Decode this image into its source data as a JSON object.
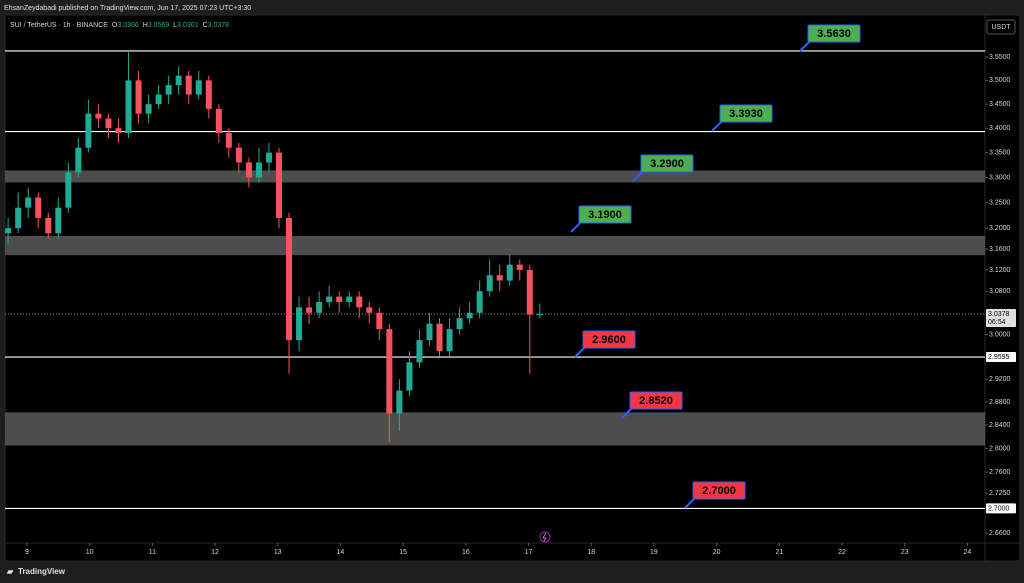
{
  "header": "EhsanZeydabadi published on TradingView.com, Jun 17, 2025 07:23 UTC+3:30",
  "footer": "TradingView",
  "chart_data": {
    "type": "candlestick",
    "symbol": "SUI / TetherUS · 1h · BINANCE",
    "ohlc": [
      {
        "label": "O",
        "value": 3.0366
      },
      {
        "label": "H",
        "value": 3.0569
      },
      {
        "label": "L",
        "value": 3.0301
      },
      {
        "label": "C",
        "value": 3.0378
      }
    ],
    "currency": "USDT",
    "log_scale": true,
    "up_color": "#22ab94",
    "down_color": "#f7525f",
    "x": [
      8.7,
      8.86,
      9.02,
      9.18,
      9.34,
      9.5,
      9.66,
      9.82,
      9.98,
      10.14,
      10.3,
      10.46,
      10.62,
      10.78,
      10.94,
      11.1,
      11.26,
      11.42,
      11.58,
      11.74,
      11.9,
      12.06,
      12.22,
      12.38,
      12.54,
      12.7,
      12.86,
      13.02,
      13.18,
      13.34,
      13.5,
      13.66,
      13.82,
      13.98,
      14.14,
      14.3,
      14.46,
      14.62,
      14.78,
      14.94,
      15.1,
      15.26,
      15.42,
      15.58,
      15.74,
      15.9,
      16.06,
      16.22,
      16.38,
      16.54,
      16.7,
      16.86,
      17.02,
      17.18
    ],
    "open": [
      3.19,
      3.2,
      3.24,
      3.26,
      3.22,
      3.19,
      3.24,
      3.31,
      3.36,
      3.43,
      3.42,
      3.4,
      3.39,
      3.5,
      3.43,
      3.45,
      3.47,
      3.49,
      3.51,
      3.47,
      3.5,
      3.44,
      3.39,
      3.36,
      3.33,
      3.3,
      3.33,
      3.35,
      3.22,
      2.99,
      3.05,
      3.04,
      3.06,
      3.07,
      3.06,
      3.07,
      3.05,
      3.04,
      3.01,
      2.86,
      2.9,
      2.95,
      2.99,
      3.02,
      2.97,
      3.01,
      3.03,
      3.04,
      3.08,
      3.11,
      3.1,
      3.13,
      3.12,
      3.0366
    ],
    "high": [
      3.22,
      3.27,
      3.28,
      3.27,
      3.23,
      3.26,
      3.33,
      3.38,
      3.46,
      3.45,
      3.43,
      3.42,
      3.56,
      3.52,
      3.47,
      3.49,
      3.51,
      3.53,
      3.52,
      3.52,
      3.51,
      3.45,
      3.4,
      3.37,
      3.34,
      3.36,
      3.37,
      3.36,
      3.23,
      3.07,
      3.07,
      3.08,
      3.09,
      3.08,
      3.08,
      3.08,
      3.06,
      3.05,
      3.02,
      2.92,
      2.97,
      3.01,
      3.04,
      3.03,
      3.03,
      3.05,
      3.06,
      3.1,
      3.14,
      3.13,
      3.15,
      3.14,
      3.13,
      3.0569
    ],
    "low": [
      3.17,
      3.19,
      3.22,
      3.2,
      3.18,
      3.18,
      3.23,
      3.3,
      3.35,
      3.4,
      3.38,
      3.37,
      3.38,
      3.41,
      3.41,
      3.44,
      3.45,
      3.47,
      3.45,
      3.46,
      3.42,
      3.37,
      3.34,
      3.31,
      3.28,
      3.29,
      3.31,
      3.2,
      2.93,
      2.97,
      3.02,
      3.03,
      3.05,
      3.04,
      3.05,
      3.03,
      3.02,
      2.99,
      2.81,
      2.83,
      2.89,
      2.94,
      2.98,
      2.96,
      2.96,
      3.0,
      3.02,
      3.03,
      3.07,
      3.08,
      3.09,
      3.1,
      2.93,
      3.0301
    ],
    "close": [
      3.2,
      3.24,
      3.26,
      3.22,
      3.19,
      3.24,
      3.31,
      3.36,
      3.43,
      3.42,
      3.4,
      3.39,
      3.5,
      3.43,
      3.45,
      3.47,
      3.49,
      3.51,
      3.47,
      3.5,
      3.44,
      3.39,
      3.36,
      3.33,
      3.3,
      3.33,
      3.35,
      3.22,
      2.99,
      3.05,
      3.04,
      3.06,
      3.07,
      3.06,
      3.07,
      3.05,
      3.04,
      3.01,
      2.86,
      2.9,
      2.95,
      2.99,
      3.02,
      2.97,
      3.01,
      3.03,
      3.04,
      3.08,
      3.11,
      3.1,
      3.13,
      3.12,
      3.0366,
      3.0378
    ],
    "xlim": [
      8.65,
      24.28
    ],
    "xticks": [
      9,
      10,
      11,
      12,
      13,
      14,
      15,
      16,
      17,
      18,
      19,
      20,
      21,
      22,
      23,
      24
    ],
    "ylim": [
      2.644,
      3.6415
    ],
    "yticks": [
      {
        "value": 3.55,
        "label": "3.5500"
      },
      {
        "value": 3.5,
        "label": "3.5000"
      },
      {
        "value": 3.45,
        "label": "3.4500"
      },
      {
        "value": 3.4,
        "label": "3.4000"
      },
      {
        "value": 3.35,
        "label": "3.3500"
      },
      {
        "value": 3.3,
        "label": "3.3000"
      },
      {
        "value": 3.25,
        "label": "3.2500"
      },
      {
        "value": 3.2,
        "label": "3.2000"
      },
      {
        "value": 3.16,
        "label": "3.1600"
      },
      {
        "value": 3.12,
        "label": "3.1200"
      },
      {
        "value": 3.08,
        "label": "3.0800"
      },
      {
        "value": 3.0,
        "label": "3.0000"
      },
      {
        "value": 2.92,
        "label": "2.9200"
      },
      {
        "value": 2.88,
        "label": "2.8800"
      },
      {
        "value": 2.84,
        "label": "2.8400"
      },
      {
        "value": 2.8,
        "label": "2.8000"
      },
      {
        "value": 2.76,
        "label": "2.7600"
      },
      {
        "value": 2.725,
        "label": "2.7250"
      },
      {
        "value": 2.66,
        "label": "2.6600"
      }
    ],
    "last_price": 3.0378,
    "countdown": "06:54",
    "zone_color": "#5a5a5a",
    "zones": [
      {
        "from": 3.148,
        "to": 3.185
      },
      {
        "from": 3.29,
        "to": 3.314
      },
      {
        "from": 2.805,
        "to": 2.862
      }
    ],
    "levels": [
      {
        "value": 3.563
      },
      {
        "value": 3.393
      },
      {
        "value": 2.9595,
        "label": "2.9595"
      },
      {
        "value": 2.7,
        "label": "2.7000"
      }
    ],
    "annotations": [
      {
        "text": "3.5630",
        "color": "#4caf50"
      },
      {
        "text": "3.3930",
        "color": "#4caf50"
      },
      {
        "text": "3.2900",
        "color": "#4caf50"
      },
      {
        "text": "3.1900",
        "color": "#4caf50"
      },
      {
        "text": "2.9600",
        "color": "#f23645"
      },
      {
        "text": "2.8520",
        "color": "#f23645"
      },
      {
        "text": "2.7000",
        "color": "#f23645"
      }
    ]
  }
}
